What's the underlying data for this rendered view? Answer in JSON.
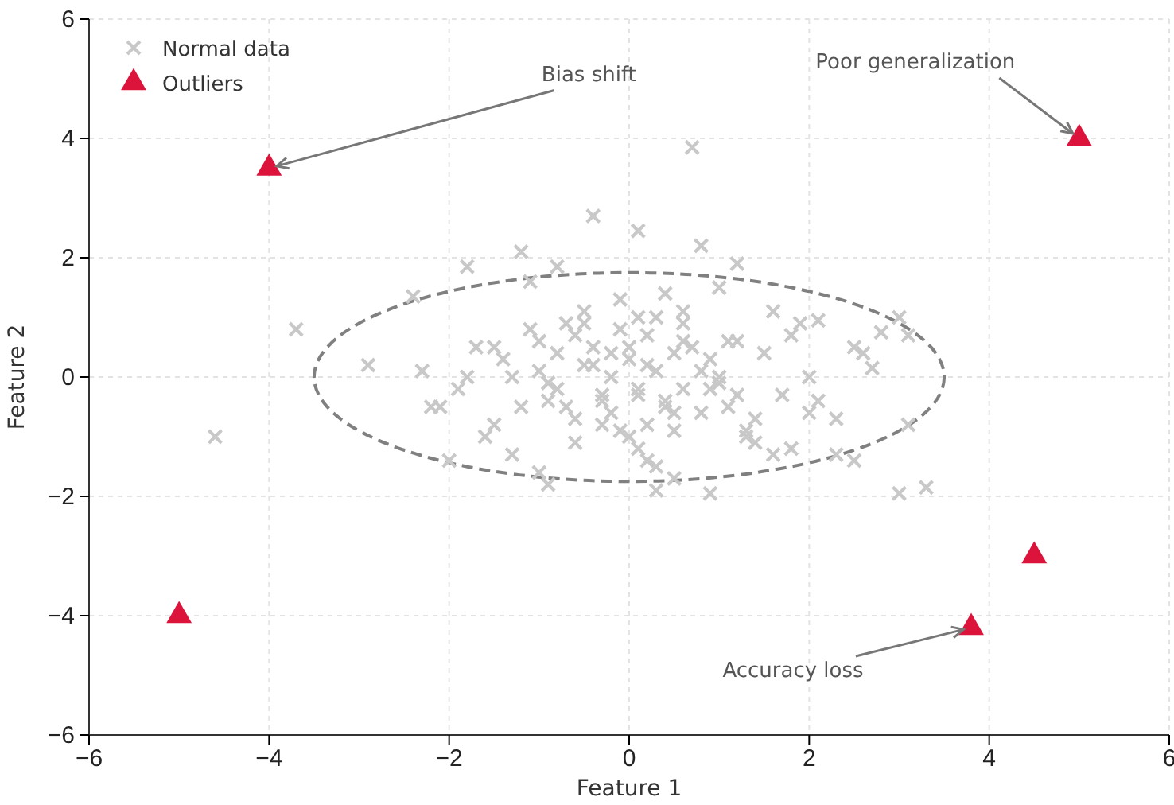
{
  "chart_data": {
    "type": "scatter",
    "xlabel": "Feature 1",
    "ylabel": "Feature 2",
    "xlim": [
      -6,
      6
    ],
    "ylim": [
      -6,
      6
    ],
    "xticks": [
      {
        "value": -6,
        "label": "−6"
      },
      {
        "value": -4,
        "label": "−4"
      },
      {
        "value": -2,
        "label": "−2"
      },
      0,
      2,
      4,
      6
    ],
    "yticks": [
      {
        "value": -6,
        "label": "−6"
      },
      {
        "value": -4,
        "label": "−4"
      },
      {
        "value": -2,
        "label": "−2"
      },
      0,
      2,
      4,
      6
    ],
    "grid": true,
    "legend": "top left",
    "series": [
      {
        "name": "Normal data",
        "color": "#c8c8c8",
        "marker": "cross",
        "x": [
          -4.6,
          -3.7,
          -2.9,
          -2.4,
          -2.3,
          -2.1,
          -2.0,
          -1.8,
          -1.9,
          -1.6,
          -1.5,
          -1.3,
          -1.2,
          -1.1,
          -1.0,
          -0.9,
          -0.8,
          -0.7,
          -0.6,
          -0.5,
          -0.4,
          -0.3,
          -0.2,
          -0.1,
          0.0,
          0.1,
          0.2,
          0.3,
          0.4,
          0.5,
          0.6,
          0.7,
          0.8,
          0.9,
          1.0,
          1.1,
          1.2,
          1.3,
          1.5,
          1.6,
          1.7,
          1.8,
          2.0,
          2.1,
          2.3,
          2.5,
          2.6,
          2.8,
          3.0,
          3.1,
          3.0,
          3.3,
          2.5,
          2.7,
          3.1,
          1.9,
          2.0,
          2.1,
          2.3,
          1.8,
          -1.4,
          -1.2,
          -1.0,
          -0.8,
          -0.7,
          -0.6,
          -0.5,
          -0.4,
          -0.3,
          -0.3,
          -0.2,
          -0.1,
          0.0,
          0.1,
          0.1,
          0.2,
          0.3,
          0.4,
          0.5,
          0.5,
          0.6,
          0.7,
          0.8,
          0.9,
          1.0,
          1.1,
          1.2,
          -1.3,
          -1.1,
          -0.9,
          -0.8,
          -0.6,
          -0.4,
          -0.2,
          0.0,
          0.2,
          0.3,
          0.4,
          0.6,
          0.8,
          1.0,
          1.2,
          1.4,
          -1.7,
          -1.5,
          -1.0,
          -0.5,
          0.1,
          0.6,
          1.4,
          -2.2,
          -1.8,
          0.2,
          0.5,
          1.6,
          -0.9,
          -0.1,
          0.1,
          0.3,
          0.9,
          1.3
        ],
        "values": [
          -1.0,
          0.8,
          0.2,
          1.35,
          0.1,
          -0.5,
          -1.4,
          1.85,
          -0.2,
          -1.0,
          0.5,
          -1.3,
          2.1,
          1.6,
          0.1,
          -0.4,
          1.85,
          -0.5,
          0.7,
          1.1,
          2.7,
          -0.8,
          0.4,
          1.3,
          -1.0,
          2.45,
          0.2,
          -1.9,
          1.4,
          -0.6,
          0.9,
          3.85,
          2.2,
          -0.2,
          1.5,
          0.6,
          1.9,
          -1.0,
          0.4,
          1.1,
          -0.3,
          0.7,
          -0.6,
          0.95,
          -0.7,
          -1.4,
          0.4,
          0.75,
          1.0,
          0.7,
          -1.95,
          -1.85,
          0.5,
          0.15,
          -0.8,
          0.9,
          0.0,
          -0.4,
          -1.3,
          -1.2,
          0.3,
          -0.5,
          0.6,
          -0.2,
          0.9,
          -0.7,
          0.2,
          0.5,
          -0.3,
          -0.4,
          -0.6,
          0.8,
          0.3,
          -0.3,
          -1.2,
          0.7,
          0.1,
          -0.5,
          0.4,
          -0.9,
          -0.2,
          0.5,
          -0.6,
          0.3,
          -0.1,
          -0.5,
          0.6,
          0.0,
          0.8,
          -0.1,
          0.4,
          -1.1,
          0.2,
          0.0,
          0.5,
          -0.8,
          1.0,
          -0.4,
          1.1,
          0.1,
          0.0,
          -0.3,
          -0.7,
          0.5,
          -0.8,
          -1.6,
          0.9,
          1.0,
          0.6,
          -1.1,
          -0.5,
          0.0,
          -1.4,
          -1.7,
          -1.3,
          -1.8,
          -0.9,
          -0.2,
          -1.5,
          -1.95,
          -0.9
        ]
      },
      {
        "name": "Outliers",
        "color": "#dc143c",
        "marker": "triangle",
        "x": [
          -4,
          5,
          -5,
          3.8,
          4.5
        ],
        "values": [
          3.5,
          4,
          -4,
          -4.2,
          -3
        ]
      }
    ],
    "annotations": [
      {
        "text": "Bias shift",
        "x": -4,
        "y": 3.5
      },
      {
        "text": "Poor generalization",
        "x": 5,
        "y": 4
      },
      {
        "text": "Accuracy loss",
        "x": 3.8,
        "y": -4.2
      }
    ]
  }
}
